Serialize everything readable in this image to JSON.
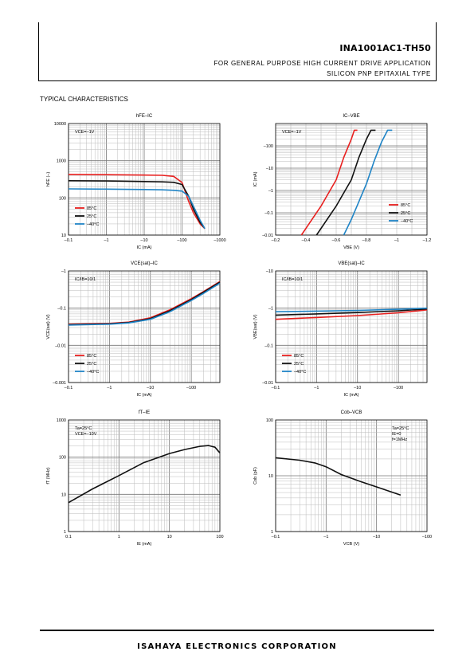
{
  "header": {
    "part_number": "INA1001AC1-TH50",
    "subtitle_1": "FOR GENERAL PURPOSE HIGH CURRENT DRIVE APPLICATION",
    "subtitle_2": "SILICON PNP EPITAXIAL TYPE"
  },
  "section_title": "TYPICAL CHARACTERISTICS",
  "footer": "ISAHAYA ELECTRONICS CORPORATION",
  "colors": {
    "red": "#e8201f",
    "black": "#111111",
    "blue": "#1f84c6"
  },
  "chart_data": [
    {
      "type": "line",
      "title": "hFE–IC",
      "xlabel": "IC (mA)",
      "ylabel": "hFE (–)",
      "xscale": "log",
      "yscale": "log",
      "xlim": [
        0.1,
        1000
      ],
      "ylim": [
        10,
        10000
      ],
      "xticks": [
        "–0.1",
        "–1",
        "–10",
        "–100",
        "–1000"
      ],
      "yticks": [
        "10",
        "100",
        "1000",
        "10000"
      ],
      "annotation": [
        "VCE=–1V"
      ],
      "legend_position": "bottom-left",
      "series": [
        {
          "name": "85°C",
          "color": "red",
          "x": [
            0.1,
            1,
            10,
            30,
            60,
            100,
            150,
            200,
            300,
            400
          ],
          "y": [
            430,
            420,
            410,
            405,
            380,
            260,
            80,
            40,
            20,
            15
          ]
        },
        {
          "name": "25°C",
          "color": "black",
          "x": [
            0.1,
            1,
            10,
            30,
            60,
            100,
            150,
            200,
            300,
            400
          ],
          "y": [
            290,
            285,
            275,
            270,
            262,
            230,
            110,
            50,
            22,
            15
          ]
        },
        {
          "name": "–40°C",
          "color": "blue",
          "x": [
            0.1,
            1,
            10,
            30,
            60,
            100,
            150,
            200,
            300,
            400
          ],
          "y": [
            175,
            172,
            168,
            165,
            160,
            152,
            110,
            60,
            25,
            15
          ]
        }
      ]
    },
    {
      "type": "line",
      "title": "IC–VBE",
      "xlabel": "VBE (V)",
      "ylabel": "IC (mA)",
      "xscale": "linear",
      "yscale": "log",
      "xlim": [
        -0.2,
        -1.2
      ],
      "ylim": [
        0.01,
        1000
      ],
      "xticks": [
        "–0.2",
        "–0.4",
        "–0.6",
        "–0.8",
        "–1",
        "–1.2"
      ],
      "yticks": [
        "–0.01",
        "–0.1",
        "–1",
        "–10",
        "–100"
      ],
      "annotation": [
        "VCE=–1V"
      ],
      "legend_position": "bottom-right",
      "series": [
        {
          "name": "85°C",
          "color": "red",
          "x": [
            -0.37,
            -0.5,
            -0.6,
            -0.65,
            -0.7,
            -0.72,
            -0.74
          ],
          "y": [
            0.01,
            0.2,
            3,
            30,
            200,
            500,
            500
          ]
        },
        {
          "name": "25°C",
          "color": "black",
          "x": [
            -0.47,
            -0.6,
            -0.7,
            -0.75,
            -0.8,
            -0.83,
            -0.86
          ],
          "y": [
            0.01,
            0.2,
            3,
            30,
            200,
            500,
            500
          ]
        },
        {
          "name": "–40°C",
          "color": "blue",
          "x": [
            -0.65,
            -0.7,
            -0.8,
            -0.85,
            -0.9,
            -0.94,
            -0.97
          ],
          "y": [
            0.01,
            0.05,
            2,
            20,
            150,
            500,
            500
          ]
        }
      ]
    },
    {
      "type": "line",
      "title": "VCE(sat)–IC",
      "xlabel": "IC (mA)",
      "ylabel": "VCE(sat) (V)",
      "xscale": "log",
      "yscale": "log",
      "xlim": [
        0.1,
        500
      ],
      "ylim": [
        0.001,
        1
      ],
      "xticks": [
        "–0.1",
        "–1",
        "–10",
        "–100"
      ],
      "yticks": [
        "–0.001",
        "–0.01",
        "–0.1",
        "–1"
      ],
      "annotation": [
        "IC/IB=10/1"
      ],
      "legend_position": "bottom-left",
      "series": [
        {
          "name": "85°C",
          "color": "red",
          "x": [
            0.1,
            1,
            3,
            10,
            30,
            100,
            200,
            500
          ],
          "y": [
            0.037,
            0.039,
            0.042,
            0.055,
            0.09,
            0.18,
            0.28,
            0.52
          ]
        },
        {
          "name": "25°C",
          "color": "black",
          "x": [
            0.1,
            1,
            3,
            10,
            30,
            100,
            200,
            500
          ],
          "y": [
            0.036,
            0.038,
            0.041,
            0.052,
            0.085,
            0.17,
            0.27,
            0.5
          ]
        },
        {
          "name": "–40°C",
          "color": "blue",
          "x": [
            0.1,
            1,
            3,
            10,
            30,
            100,
            200,
            500
          ],
          "y": [
            0.035,
            0.037,
            0.04,
            0.05,
            0.08,
            0.16,
            0.25,
            0.47
          ]
        }
      ]
    },
    {
      "type": "line",
      "title": "VBE(sat)–IC",
      "xlabel": "IC (mA)",
      "ylabel": "VBE(sat) (V)",
      "xscale": "log",
      "yscale": "log",
      "xlim": [
        0.1,
        500
      ],
      "ylim": [
        0.01,
        10
      ],
      "xticks": [
        "–0.1",
        "–1",
        "–10",
        "–100"
      ],
      "yticks": [
        "–0.01",
        "–0.1",
        "–1",
        "–10"
      ],
      "annotation": [
        "IC/IB=10/1"
      ],
      "legend_position": "bottom-left",
      "series": [
        {
          "name": "85°C",
          "color": "red",
          "x": [
            0.1,
            1,
            10,
            100,
            500
          ],
          "y": [
            0.5,
            0.56,
            0.63,
            0.75,
            0.9
          ]
        },
        {
          "name": "25°C",
          "color": "black",
          "x": [
            0.1,
            1,
            10,
            100,
            500
          ],
          "y": [
            0.65,
            0.7,
            0.76,
            0.85,
            0.95
          ]
        },
        {
          "name": "–40°C",
          "color": "blue",
          "x": [
            0.1,
            1,
            10,
            100,
            500
          ],
          "y": [
            0.8,
            0.83,
            0.87,
            0.93,
            1.0
          ]
        }
      ]
    },
    {
      "type": "line",
      "title": "fT–IE",
      "xlabel": "IE (mA)",
      "ylabel": "fT (MHz)",
      "xscale": "log",
      "yscale": "log",
      "xlim": [
        0.1,
        100
      ],
      "ylim": [
        1,
        1000
      ],
      "xticks": [
        "0.1",
        "1",
        "10",
        "100"
      ],
      "yticks": [
        "1",
        "10",
        "100",
        "1000"
      ],
      "annotation": [
        "Ta=25°C",
        "VCE=–10V"
      ],
      "series": [
        {
          "name": "",
          "color": "black",
          "x": [
            0.1,
            0.3,
            1,
            3,
            10,
            20,
            40,
            60,
            80,
            100
          ],
          "y": [
            6,
            14,
            32,
            70,
            125,
            160,
            195,
            205,
            185,
            130
          ]
        }
      ]
    },
    {
      "type": "line",
      "title": "Cob–VCB",
      "xlabel": "VCB (V)",
      "ylabel": "Cob (pF)",
      "xscale": "log",
      "yscale": "log",
      "xlim": [
        0.1,
        100
      ],
      "ylim": [
        1,
        100
      ],
      "xticks": [
        "–0.1",
        "–1",
        "–10",
        "–100"
      ],
      "yticks": [
        "1",
        "10",
        "100"
      ],
      "annotation": [
        "Ta=25°C",
        "IE=0",
        "f=1MHz"
      ],
      "series": [
        {
          "name": "",
          "color": "black",
          "x": [
            0.1,
            0.3,
            0.6,
            1,
            2,
            5,
            10,
            30
          ],
          "y": [
            21,
            19,
            17,
            14.5,
            10.5,
            7.8,
            6.3,
            4.5
          ]
        }
      ]
    }
  ]
}
